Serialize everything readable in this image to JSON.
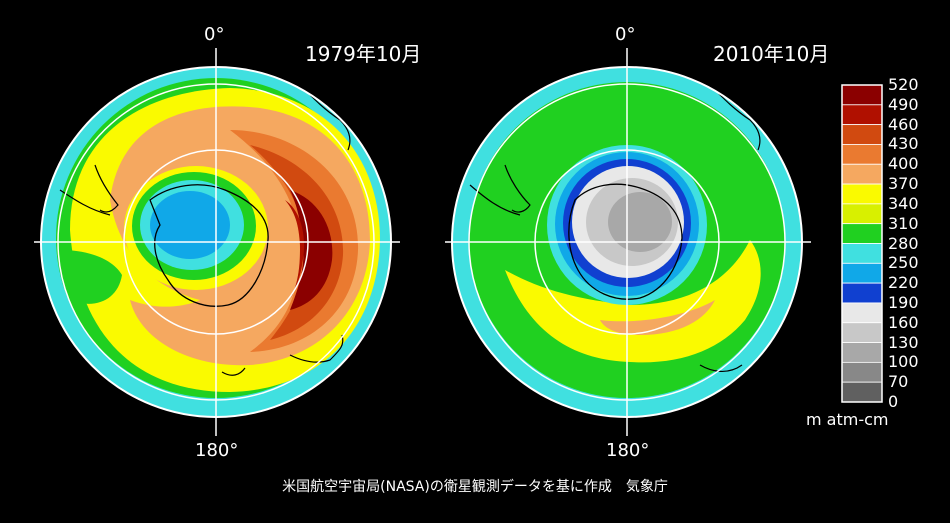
{
  "maps": [
    {
      "title": "1979年10月",
      "top_label": "0°",
      "bottom_label": "180°"
    },
    {
      "title": "2010年10月",
      "top_label": "0°",
      "bottom_label": "180°"
    }
  ],
  "legend": {
    "unit": "m atm-cm",
    "ticks": [
      "520",
      "490",
      "460",
      "430",
      "400",
      "370",
      "340",
      "310",
      "280",
      "250",
      "220",
      "190",
      "160",
      "130",
      "100",
      "70",
      "0"
    ],
    "colors": [
      "#8b0000",
      "#b01000",
      "#d14a10",
      "#ea7a30",
      "#f5a860",
      "#fafa00",
      "#d8f000",
      "#20d020",
      "#40e0e0",
      "#10a8e8",
      "#1040d0",
      "#e8e8e8",
      "#c8c8c8",
      "#a8a8a8",
      "#888888",
      "#606060",
      "#303030"
    ]
  },
  "credit": "米国航空宇宙局(NASA)の衛星観測データを基に作成　気象庁"
}
